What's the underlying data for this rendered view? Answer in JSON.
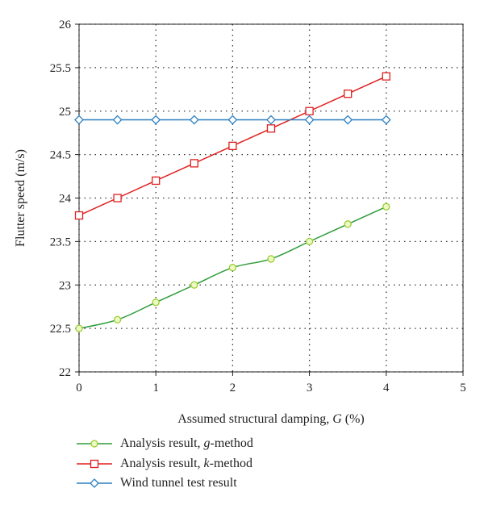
{
  "chart_data": {
    "type": "line",
    "xlabel": "Assumed structural damping, G (%)",
    "xlabel_parts": [
      "Assumed structural damping, ",
      "G",
      " (%)"
    ],
    "ylabel": "Flutter speed (m/s)",
    "xlim": [
      0,
      5
    ],
    "ylim": [
      22,
      26
    ],
    "xticks": [
      "0",
      "1",
      "2",
      "3",
      "4",
      "5"
    ],
    "yticks": [
      "22",
      "22.5",
      "23",
      "23.5",
      "24",
      "24.5",
      "25",
      "25.5",
      "26"
    ],
    "grid": "dotted",
    "legend_position": "bottom",
    "x": [
      0,
      0.5,
      1,
      1.5,
      2,
      2.5,
      3,
      3.5,
      4
    ],
    "series": [
      {
        "name": "Analysis result, g-method",
        "name_parts": [
          "Analysis result, ",
          "g",
          "-method"
        ],
        "marker": "circle",
        "color": "#2e9c3a",
        "marker_fill": "#eef9c6",
        "marker_stroke": "#9acd32",
        "values": [
          22.5,
          22.6,
          22.8,
          23.0,
          23.2,
          23.3,
          23.5,
          23.7,
          23.9
        ]
      },
      {
        "name": "Analysis result, k-method",
        "name_parts": [
          "Analysis result, ",
          "k",
          "-method"
        ],
        "marker": "square",
        "color": "#e02020",
        "marker_fill": "#ffffff",
        "marker_stroke": "#e02020",
        "values": [
          23.8,
          24.0,
          24.2,
          24.4,
          24.6,
          24.8,
          25.0,
          25.2,
          25.4
        ]
      },
      {
        "name": "Wind tunnel test result",
        "name_parts": [
          "Wind tunnel test result",
          "",
          ""
        ],
        "marker": "diamond",
        "color": "#2a7fc1",
        "marker_fill": "#ffffff",
        "marker_stroke": "#2a7fc1",
        "values": [
          24.9,
          24.9,
          24.9,
          24.9,
          24.9,
          24.9,
          24.9,
          24.9,
          24.9
        ]
      }
    ]
  }
}
